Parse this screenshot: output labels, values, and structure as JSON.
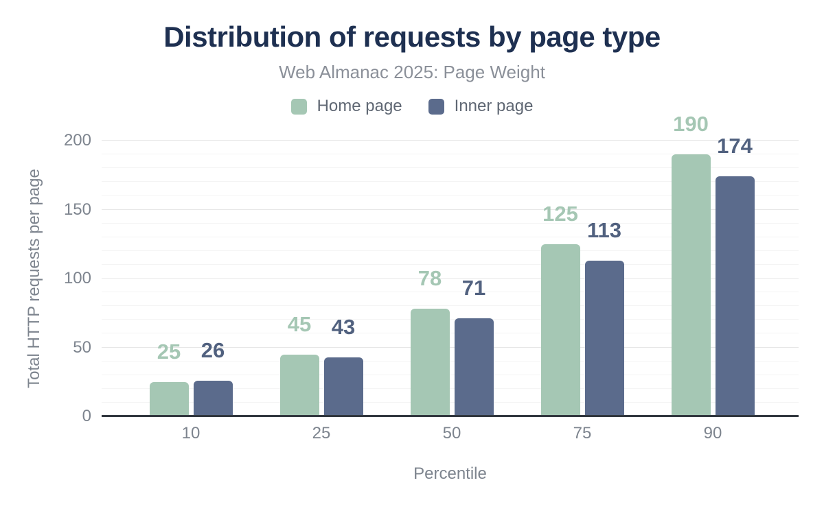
{
  "title": "Distribution of requests by page type",
  "subtitle": "Web Almanac 2025: Page Weight",
  "legend": {
    "items": [
      {
        "label": "Home page",
        "color": "#a5c7b4"
      },
      {
        "label": "Inner page",
        "color": "#5b6b8c"
      }
    ]
  },
  "chart_data": {
    "type": "bar",
    "title": "Distribution of requests by page type",
    "subtitle": "Web Almanac 2025: Page Weight",
    "xlabel": "Percentile",
    "ylabel": "Total HTTP requests per page",
    "categories": [
      "10",
      "25",
      "50",
      "75",
      "90"
    ],
    "series": [
      {
        "name": "Home page",
        "color": "#a5c7b4",
        "label_color": "#a5c7b4",
        "values": [
          25,
          45,
          78,
          125,
          190
        ]
      },
      {
        "name": "Inner page",
        "color": "#5b6b8c",
        "label_color": "#51617f",
        "values": [
          26,
          43,
          71,
          113,
          174
        ]
      }
    ],
    "ylim": [
      0,
      200
    ],
    "yticks": [
      "0",
      "50",
      "100",
      "150",
      "200"
    ],
    "grid": {
      "minor_step": 10,
      "major_step": 50,
      "gridlines_on": true
    },
    "legend_position": "top",
    "value_labels_shown": true
  },
  "colors": {
    "title": "#1e3051",
    "subtitle": "#8b9099",
    "axis_text": "#7d848e",
    "legend_text": "#5f6773",
    "axis_line": "#32383f",
    "grid_major": "#e7e7e7",
    "grid_minor": "#f4f4f4",
    "background": "#ffffff"
  }
}
